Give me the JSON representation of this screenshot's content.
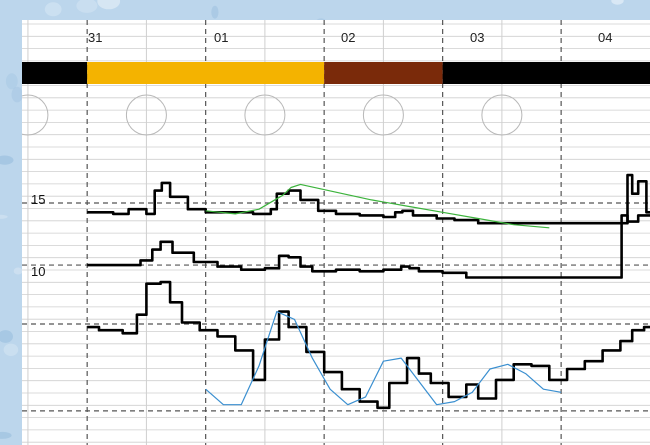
{
  "chart_data": {
    "type": "line",
    "title": "",
    "xlabel": "",
    "ylabel": "",
    "x_tick_labels": [
      "31",
      "01",
      "02",
      "03",
      "04"
    ],
    "y_tick_labels": [
      "15",
      "10"
    ],
    "colors": {
      "background": "#bcd6ec",
      "panel": "#ffffff",
      "grid": "#cfcfcf",
      "dashed_grid": "#555555",
      "band_segments": [
        "#f4b300",
        "#7a2a0a",
        "#000000"
      ],
      "green_line": "#3cb33c",
      "blue_line": "#3a8fd0",
      "main_lines": "#000000"
    },
    "band": {
      "segments": [
        {
          "from_day": 0.0,
          "to_day": 2.0,
          "color": "#f4b300"
        },
        {
          "from_day": 2.0,
          "to_day": 3.0,
          "color": "#7a2a0a"
        },
        {
          "from_day": 3.0,
          "to_day": 5.0,
          "color": "#000000"
        }
      ]
    },
    "series": [
      {
        "color": "#000000",
        "x": [
          0.0,
          0.22,
          0.35,
          0.5,
          0.57,
          0.63,
          0.7,
          0.85,
          1.0,
          1.2,
          1.4,
          1.55,
          1.6,
          1.7,
          1.8,
          1.95,
          2.1,
          2.3,
          2.5,
          2.6,
          2.66,
          2.75,
          2.95,
          3.1,
          3.3,
          3.6,
          3.9,
          4.2,
          4.4,
          4.52,
          4.56,
          4.6,
          4.65,
          4.72,
          4.8
        ],
        "y": [
          13.4,
          13.3,
          13.6,
          13.3,
          14.8,
          15.3,
          14.4,
          13.6,
          13.4,
          13.4,
          13.3,
          13.6,
          14.6,
          14.8,
          14.2,
          13.5,
          13.3,
          13.2,
          13.1,
          13.4,
          13.5,
          13.2,
          13.0,
          12.9,
          12.7,
          12.7,
          12.7,
          12.7,
          12.7,
          12.7,
          15.8,
          14.6,
          15.4,
          13.4,
          13.1
        ]
      },
      {
        "color": "#000000",
        "x": [
          0.0,
          0.3,
          0.45,
          0.55,
          0.62,
          0.72,
          0.9,
          1.1,
          1.3,
          1.5,
          1.62,
          1.7,
          1.8,
          1.9,
          2.1,
          2.3,
          2.5,
          2.65,
          2.72,
          2.8,
          3.0,
          3.2,
          3.4,
          3.7,
          4.0,
          4.3,
          4.48,
          4.51,
          4.56,
          4.65,
          4.8
        ],
        "y": [
          10.0,
          10.0,
          10.3,
          11.0,
          11.5,
          10.8,
          10.2,
          9.9,
          9.7,
          9.8,
          10.6,
          10.5,
          9.9,
          9.6,
          9.7,
          9.6,
          9.7,
          9.9,
          9.8,
          9.6,
          9.5,
          9.2,
          9.2,
          9.2,
          9.2,
          9.2,
          9.2,
          13.2,
          12.8,
          13.2,
          13.3
        ]
      },
      {
        "color": "#000000",
        "x": [
          0.0,
          0.1,
          0.3,
          0.42,
          0.5,
          0.62,
          0.7,
          0.8,
          0.95,
          1.1,
          1.25,
          1.4,
          1.5,
          1.62,
          1.7,
          1.85,
          2.0,
          2.15,
          2.3,
          2.45,
          2.55,
          2.7,
          2.8,
          2.9,
          3.05,
          3.2,
          3.3,
          3.45,
          3.6,
          3.75,
          3.9,
          4.05,
          4.2,
          4.35,
          4.5,
          4.6,
          4.7,
          4.8
        ],
        "y": [
          6.0,
          5.8,
          5.6,
          6.8,
          8.8,
          8.9,
          7.6,
          6.3,
          5.8,
          5.4,
          4.5,
          2.6,
          5.2,
          7.0,
          6.0,
          4.4,
          3.1,
          2.0,
          1.2,
          0.8,
          2.4,
          4.0,
          3.0,
          2.4,
          1.5,
          2.3,
          1.4,
          2.6,
          3.6,
          3.5,
          2.6,
          3.3,
          3.8,
          4.5,
          5.1,
          5.8,
          6.0,
          6.3
        ]
      },
      {
        "color": "#3cb33c",
        "x": [
          1.0,
          1.25,
          1.45,
          1.65,
          1.72,
          1.8,
          2.1,
          2.4,
          2.7,
          3.0,
          3.3,
          3.6,
          3.9
        ],
        "y": [
          13.5,
          13.3,
          13.6,
          14.5,
          15.0,
          15.2,
          14.7,
          14.2,
          13.8,
          13.4,
          13.0,
          12.6,
          12.4
        ]
      },
      {
        "color": "#3a8fd0",
        "x": [
          1.0,
          1.15,
          1.3,
          1.45,
          1.6,
          1.75,
          1.9,
          2.05,
          2.2,
          2.35,
          2.5,
          2.65,
          2.8,
          2.95,
          3.1,
          3.25,
          3.4,
          3.55,
          3.7,
          3.85,
          4.0
        ],
        "y": [
          2.0,
          1.0,
          1.0,
          3.5,
          7.0,
          6.5,
          4.0,
          2.0,
          1.0,
          1.5,
          3.8,
          4.0,
          2.5,
          1.0,
          1.2,
          1.8,
          3.3,
          3.6,
          3.0,
          2.0,
          1.8
        ]
      }
    ],
    "xlim": [
      -0.55,
      4.75
    ],
    "ylim": [
      -1.6,
      25.8
    ],
    "grid": true,
    "circles_row_days": [
      -0.5,
      0.5,
      1.5,
      2.5,
      3.5
    ]
  }
}
